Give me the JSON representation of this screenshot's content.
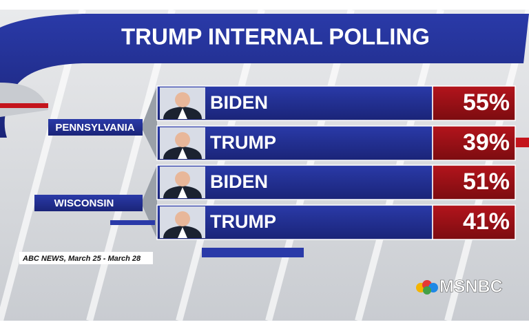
{
  "header": {
    "title": "TRUMP INTERNAL POLLING"
  },
  "groups": [
    {
      "state": "PENNSYLVANIA",
      "rows": [
        {
          "candidate": "BIDEN",
          "value": "55%"
        },
        {
          "candidate": "TRUMP",
          "value": "39%"
        }
      ]
    },
    {
      "state": "WISCONSIN",
      "rows": [
        {
          "candidate": "BIDEN",
          "value": "51%"
        },
        {
          "candidate": "TRUMP",
          "value": "41%"
        }
      ]
    }
  ],
  "source": "ABC NEWS, March 25 - March 28",
  "network": "MSNBC"
}
